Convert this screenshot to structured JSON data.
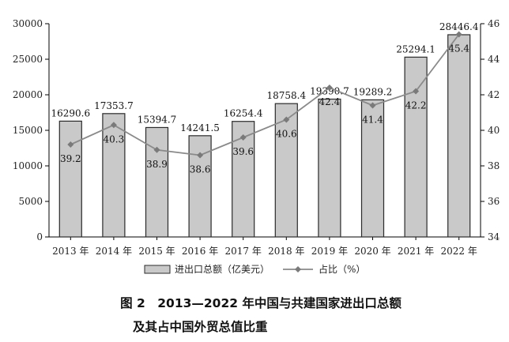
{
  "chart_data": {
    "type": "bar",
    "categories": [
      "2013 年",
      "2014 年",
      "2015 年",
      "2016 年",
      "2017 年",
      "2018 年",
      "2019 年",
      "2020 年",
      "2021 年",
      "2022 年"
    ],
    "series": [
      {
        "name": "进出口总额（亿美元）",
        "type": "bar",
        "axis": "left",
        "values": [
          16290.6,
          17353.7,
          15394.7,
          14241.5,
          16254.4,
          18758.4,
          19390.7,
          19289.2,
          25294.1,
          28446.4
        ],
        "labels": [
          "16290.6",
          "17353.7",
          "15394.7",
          "14241.5",
          "16254.4",
          "18758.4",
          "19390.7",
          "19289.2",
          "25294.1",
          "28446.4"
        ]
      },
      {
        "name": "占比（%）",
        "type": "line",
        "axis": "right",
        "values": [
          39.2,
          40.3,
          38.9,
          38.6,
          39.6,
          40.6,
          42.4,
          41.4,
          42.2,
          45.4
        ],
        "labels": [
          "39.2",
          "40.3",
          "38.9",
          "38.6",
          "39.6",
          "40.6",
          "42.4",
          "41.4",
          "42.2",
          "45.4"
        ]
      }
    ],
    "y_left": {
      "ylim": [
        0,
        30000
      ],
      "ticks": [
        "0",
        "5000",
        "10000",
        "15000",
        "20000",
        "25000",
        "30000"
      ]
    },
    "y_right": {
      "ylim": [
        34,
        46
      ],
      "ticks": [
        "34",
        "36",
        "38",
        "40",
        "42",
        "44",
        "46"
      ]
    },
    "grid": false,
    "legend": "bottom",
    "colors": {
      "bar_fill": "#c9c9c9",
      "bar_stroke": "#2b2b2b",
      "line": "#8a8a8a",
      "marker": "#7a7a7a"
    }
  },
  "caption": {
    "line1": "图 2　2013—2022 年中国与共建国家进出口总额",
    "line2": "及其占中国外贸总值比重"
  }
}
